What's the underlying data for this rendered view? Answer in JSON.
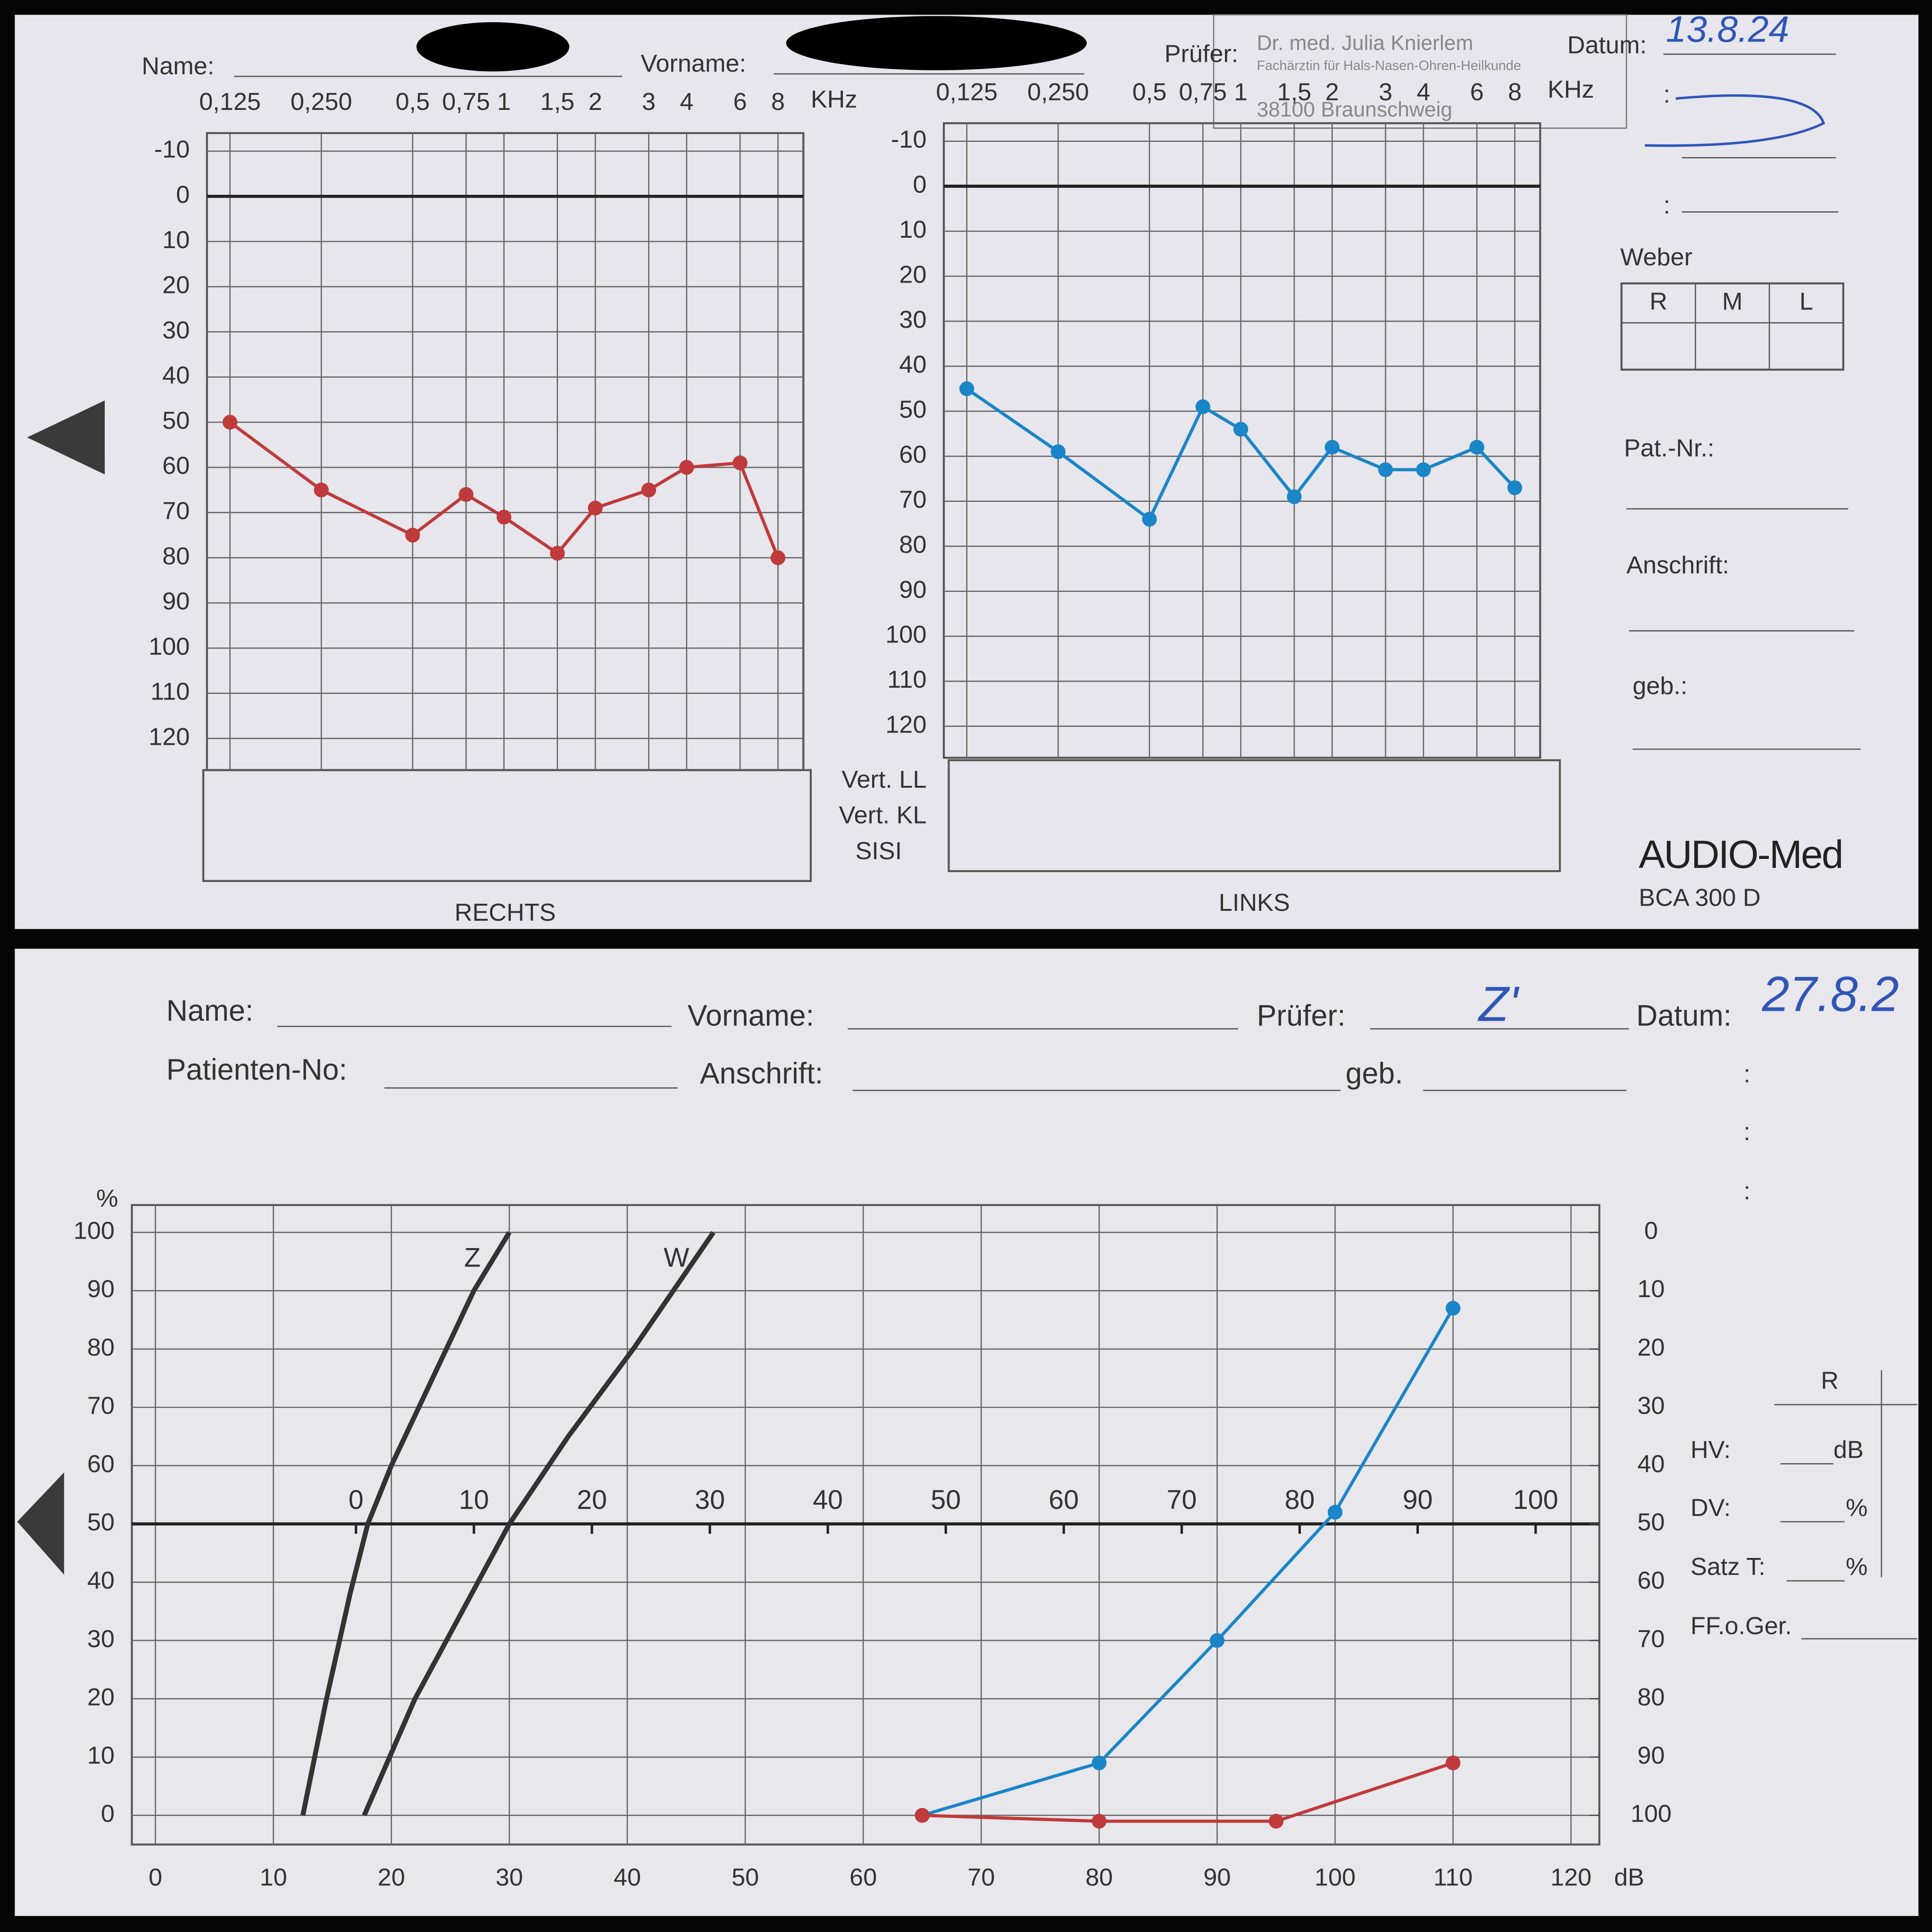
{
  "top_form": {
    "name_label": "Name:",
    "vorname_label": "Vorname:",
    "pruefer_label": "Prüfer:",
    "datum_label": "Datum:",
    "datum": "13.8.24",
    "stamp": [
      "Dr. med. Julia Knierlem",
      "Fachärztin für Hals-Nasen-Ohren-Heilkunde",
      "38100 Braunschweig"
    ],
    "weber": {
      "title": "Weber",
      "cols": [
        "R",
        "M",
        "L"
      ]
    },
    "pat_nr_label": "Pat.-Nr.:",
    "anschrift_label": "Anschrift:",
    "geb_label": "geb.:",
    "row_labels": [
      "Vert. LL",
      "Vert. KL",
      "SISI"
    ],
    "brand": "AUDIO-Med",
    "model": "BCA 300 D"
  },
  "bottom_form": {
    "name_label": "Name:",
    "vorname_label": "Vorname:",
    "pruefer_label": "Prüfer:",
    "pruefer": "Z'",
    "datum_label": "Datum:",
    "datum": "27.8.2",
    "patienten_no_label": "Patienten-No:",
    "anschrift_label": "Anschrift:",
    "geb_label": "geb.",
    "side_col": "R",
    "hv_label": "HV:",
    "hv_unit": "dB",
    "dv_label": "DV:",
    "dv_unit": "%",
    "satz_label": "Satz T:",
    "satz_unit": "%",
    "ff_label": "FF.o.Ger."
  },
  "chart_data": [
    {
      "type": "line",
      "title": "RECHTS",
      "x_unit": "KHz",
      "xlog": true,
      "grid": true,
      "x": [
        0.125,
        0.25,
        0.5,
        0.75,
        1,
        1.5,
        2,
        3,
        4,
        6,
        8
      ],
      "series": [
        {
          "color": "#c0393b",
          "values": [
            50,
            65,
            75,
            66,
            71,
            79,
            69,
            65,
            60,
            59,
            80
          ]
        }
      ],
      "xlim": [
        0.105,
        9.7
      ],
      "xticks": [
        {
          "value": 0.125,
          "label": "0,125"
        },
        {
          "value": 0.25,
          "label": "0,250"
        },
        {
          "value": 0.5,
          "label": "0,5"
        },
        {
          "value": 0.75,
          "label": "0,75"
        },
        1,
        {
          "value": 1.5,
          "label": "1,5"
        },
        2,
        3,
        4,
        6,
        8
      ],
      "ylim": [
        127,
        -14
      ],
      "yticks": [
        -10,
        0,
        10,
        20,
        30,
        40,
        50,
        60,
        70,
        80,
        90,
        100,
        110,
        120
      ]
    },
    {
      "type": "line",
      "title": "LINKS",
      "x_unit": "KHz",
      "xlog": true,
      "grid": true,
      "x": [
        0.125,
        0.25,
        0.5,
        0.75,
        1,
        1.5,
        2,
        3,
        4,
        6,
        8
      ],
      "series": [
        {
          "color": "#1a86c8",
          "values": [
            45,
            59,
            74,
            49,
            54,
            69,
            58,
            63,
            63,
            58,
            67
          ]
        }
      ],
      "xlim": [
        0.105,
        9.7
      ],
      "xticks": [
        {
          "value": 0.125,
          "label": "0,125"
        },
        {
          "value": 0.25,
          "label": "0,250"
        },
        {
          "value": 0.5,
          "label": "0,5"
        },
        {
          "value": 0.75,
          "label": "0,75"
        },
        1,
        {
          "value": 1.5,
          "label": "1,5"
        },
        2,
        3,
        4,
        6,
        8
      ],
      "ylim": [
        127,
        -14
      ],
      "yticks": [
        -10,
        0,
        10,
        20,
        30,
        40,
        50,
        60,
        70,
        80,
        90,
        100,
        110,
        120
      ]
    },
    {
      "type": "line",
      "x_unit": "dB",
      "y_unit": "%",
      "grid": true,
      "series": [
        {
          "name": "Z",
          "color": "#333333",
          "x": [
            12.5,
            14.5,
            16.5,
            18,
            20,
            23.5,
            27,
            30
          ],
          "values": [
            0,
            20,
            38,
            50,
            60,
            75,
            90,
            100
          ]
        },
        {
          "name": "W",
          "color": "#333333",
          "x": [
            17.7,
            22,
            26,
            30,
            35,
            40.5,
            47.3
          ],
          "values": [
            0,
            20,
            35,
            50,
            65,
            80,
            100
          ]
        },
        {
          "color": "#1a86c8",
          "x": [
            65,
            80,
            90,
            100,
            110
          ],
          "values": [
            0,
            9,
            30,
            52,
            87
          ]
        },
        {
          "color": "#c0393b",
          "x": [
            65,
            80,
            95,
            110
          ],
          "values": [
            0,
            -1,
            -1,
            9
          ]
        }
      ],
      "xlim": [
        -2,
        122.4
      ],
      "xticks": [
        0,
        10,
        20,
        30,
        40,
        50,
        60,
        70,
        80,
        90,
        100,
        110,
        120
      ],
      "x2lim": [
        -19,
        105.4
      ],
      "x2ticks": [
        0,
        10,
        20,
        30,
        40,
        50,
        60,
        70,
        80,
        90,
        100
      ],
      "ylim": [
        -5,
        104.7
      ],
      "yticks": [
        0,
        10,
        20,
        30,
        40,
        50,
        60,
        70,
        80,
        90,
        100
      ],
      "y2lim": [
        105,
        -4.7
      ],
      "y2ticks": [
        0,
        10,
        20,
        30,
        40,
        50,
        60,
        70,
        80,
        90,
        100
      ]
    }
  ]
}
